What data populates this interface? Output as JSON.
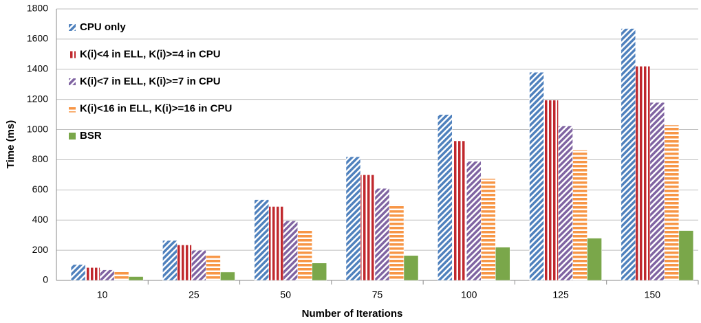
{
  "chart_data": {
    "type": "bar",
    "xlabel": "Number of Iterations",
    "ylabel": "Time (ms)",
    "categories": [
      "10",
      "25",
      "50",
      "75",
      "100",
      "125",
      "150"
    ],
    "series": [
      {
        "name": "CPU only",
        "color": "#4f81bd",
        "pattern": "diagonal",
        "values": [
          105,
          265,
          535,
          820,
          1100,
          1380,
          1670
        ]
      },
      {
        "name": "K(i)<4 in ELL, K(i)>=4 in CPU",
        "color": "#c0282d",
        "pattern": "vertical",
        "values": [
          85,
          235,
          490,
          700,
          925,
          1195,
          1420
        ]
      },
      {
        "name": "K(i)<7 in ELL, K(i)>=7 in CPU",
        "color": "#8064a2",
        "pattern": "diagonal",
        "values": [
          70,
          200,
          395,
          610,
          790,
          1025,
          1180
        ]
      },
      {
        "name": "K(i)<16 in ELL, K(i)>=16 in CPU",
        "color": "#f79646",
        "pattern": "horizontal",
        "values": [
          60,
          165,
          330,
          505,
          675,
          865,
          1030
        ]
      },
      {
        "name": "BSR",
        "color": "#7aa74a",
        "pattern": "solid",
        "values": [
          25,
          55,
          115,
          165,
          220,
          280,
          330
        ]
      }
    ],
    "ylim": [
      0,
      1800
    ],
    "yticks": [
      0,
      200,
      400,
      600,
      800,
      1000,
      1200,
      1400,
      1600,
      1800
    ],
    "grid": true,
    "legend": "upper left"
  }
}
